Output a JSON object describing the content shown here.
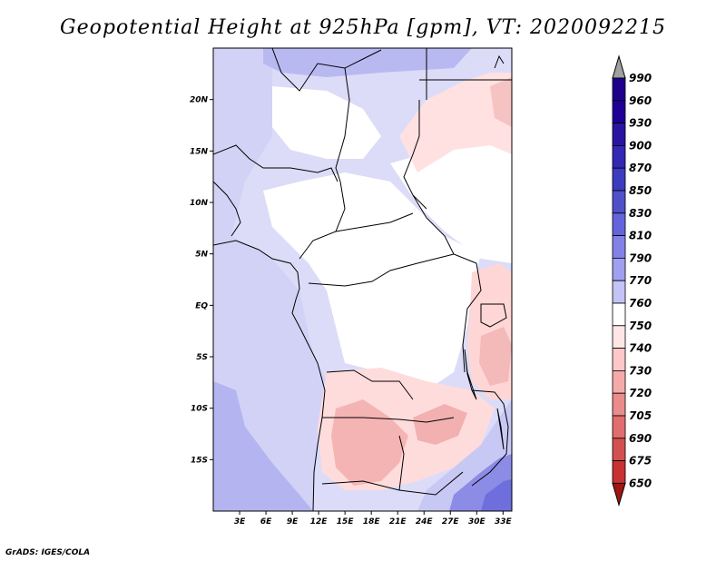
{
  "title": "Geopotential Height at 925hPa [gpm], VT: 2020092215",
  "footer": "GrADS: IGES/COLA",
  "map": {
    "lon_range": [
      0,
      34
    ],
    "lat_range": [
      -20,
      25
    ],
    "lat_ticks": [
      {
        "value": 20,
        "label": "20N"
      },
      {
        "value": 15,
        "label": "15N"
      },
      {
        "value": 10,
        "label": "10N"
      },
      {
        "value": 5,
        "label": "5N"
      },
      {
        "value": 0,
        "label": "EQ"
      },
      {
        "value": -5,
        "label": "5S"
      },
      {
        "value": -10,
        "label": "10S"
      },
      {
        "value": -15,
        "label": "15S"
      }
    ],
    "lon_ticks": [
      {
        "value": 3,
        "label": "3E"
      },
      {
        "value": 6,
        "label": "6E"
      },
      {
        "value": 9,
        "label": "9E"
      },
      {
        "value": 12,
        "label": "12E"
      },
      {
        "value": 15,
        "label": "15E"
      },
      {
        "value": 18,
        "label": "18E"
      },
      {
        "value": 21,
        "label": "21E"
      },
      {
        "value": 24,
        "label": "24E"
      },
      {
        "value": 27,
        "label": "27E"
      },
      {
        "value": 30,
        "label": "30E"
      },
      {
        "value": 33,
        "label": "33E"
      }
    ]
  },
  "colorbar": {
    "levels": [
      {
        "label": "990",
        "color": "#1e008c"
      },
      {
        "label": "960",
        "color": "#1e0096"
      },
      {
        "label": "930",
        "color": "#2814a0"
      },
      {
        "label": "900",
        "color": "#3228b4"
      },
      {
        "label": "870",
        "color": "#3c3cbe"
      },
      {
        "label": "850",
        "color": "#5050c8"
      },
      {
        "label": "830",
        "color": "#6464dc"
      },
      {
        "label": "810",
        "color": "#8282e6"
      },
      {
        "label": "790",
        "color": "#a0a0f0"
      },
      {
        "label": "770",
        "color": "#c3c3f5"
      },
      {
        "label": "760",
        "color": "#ffffff"
      },
      {
        "label": "750",
        "color": "#ffe6e6"
      },
      {
        "label": "740",
        "color": "#ffc8c8"
      },
      {
        "label": "730",
        "color": "#f5aaaa"
      },
      {
        "label": "720",
        "color": "#eb8c8c"
      },
      {
        "label": "705",
        "color": "#e16e6e"
      },
      {
        "label": "690",
        "color": "#d25050"
      },
      {
        "label": "675",
        "color": "#c83232"
      },
      {
        "label": "650",
        "color": "#b41e1e"
      }
    ],
    "top_arrow_color": "#a0a0a0",
    "bottom_arrow_color": "#a01414"
  }
}
